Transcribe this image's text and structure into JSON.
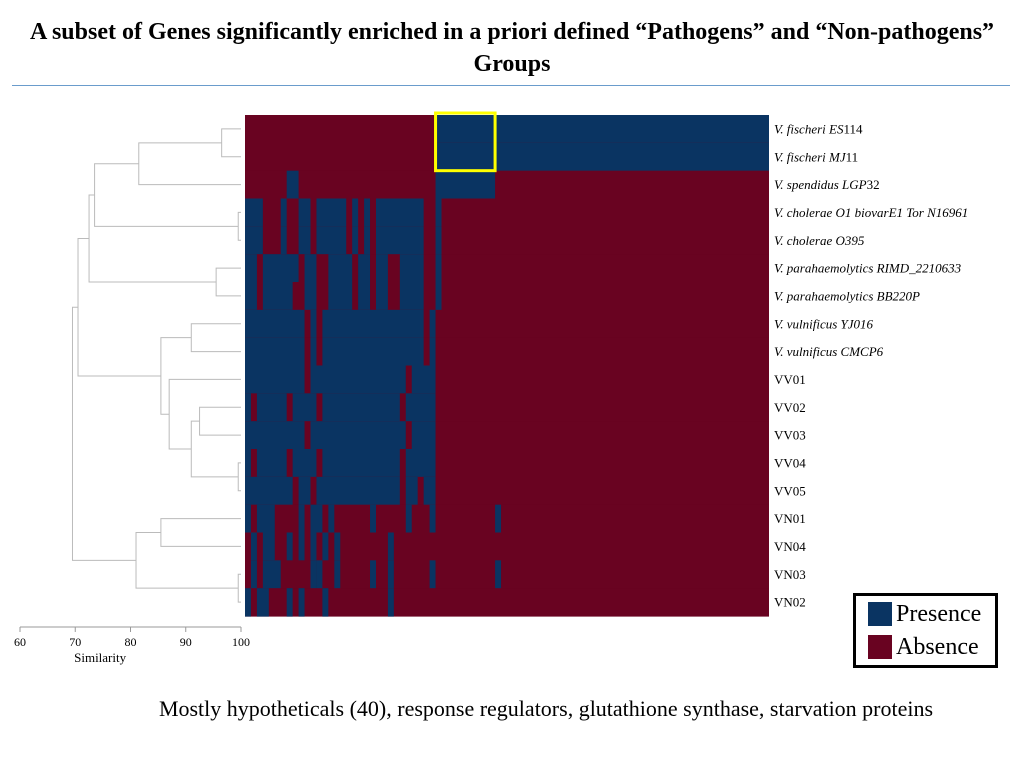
{
  "title": "A subset of Genes significantly enriched in a priori defined “Pathogens” and “Non-pathogens” Groups",
  "caption": "Mostly hypotheticals (40), response regulators, glutathione synthase, starvation proteins",
  "colors": {
    "presence": "#0a3462",
    "absence": "#690321",
    "highlight": "#ffff00",
    "dendrogram": "#bbbbbb",
    "divider": "#6a9ccc"
  },
  "legend": {
    "items": [
      {
        "label": "Presence",
        "key": "presence"
      },
      {
        "label": "Absence",
        "key": "absence"
      }
    ]
  },
  "chart_data": {
    "type": "heatmap",
    "values_legend": {
      "1": "Presence",
      "0": "Absence"
    },
    "rows": [
      {
        "label_italic": "V. fischeri ES",
        "label_plain": "114"
      },
      {
        "label_italic": "V. fischeri MJ",
        "label_plain": "11"
      },
      {
        "label_italic": "V. spendidus LGP",
        "label_plain": "32"
      },
      {
        "label_italic": "V. cholerae O1 biovarE1 Tor N16961",
        "label_plain": ""
      },
      {
        "label_italic": "V. cholerae O395",
        "label_plain": ""
      },
      {
        "label_italic": "V. parahaemolytics RIMD_2210633",
        "label_plain": ""
      },
      {
        "label_italic": "V. parahaemolytics BB220P",
        "label_plain": ""
      },
      {
        "label_italic": "V. vulnificus YJ016",
        "label_plain": ""
      },
      {
        "label_italic": "V. vulnificus CMCP6",
        "label_plain": ""
      },
      {
        "label_italic": "",
        "label_plain": "VV01"
      },
      {
        "label_italic": "",
        "label_plain": "VV02"
      },
      {
        "label_italic": "",
        "label_plain": "VV03"
      },
      {
        "label_italic": "",
        "label_plain": "VV04"
      },
      {
        "label_italic": "",
        "label_plain": "VV05"
      },
      {
        "label_italic": "",
        "label_plain": "VN01"
      },
      {
        "label_italic": "",
        "label_plain": "VN04"
      },
      {
        "label_italic": "",
        "label_plain": "VN03"
      },
      {
        "label_italic": "",
        "label_plain": "VN02"
      }
    ],
    "gene_columns": 88,
    "presence_segments": [
      [
        [
          32,
          42
        ],
        [
          42,
          88
        ]
      ],
      [
        [
          32,
          42
        ],
        [
          42,
          88
        ]
      ],
      [
        [
          7,
          9
        ],
        [
          32,
          42
        ]
      ],
      [
        [
          0,
          3
        ],
        [
          6,
          7
        ],
        [
          9,
          11
        ],
        [
          12,
          17
        ],
        [
          18,
          19
        ],
        [
          20,
          21
        ],
        [
          22,
          30
        ],
        [
          32,
          33
        ]
      ],
      [
        [
          0,
          3
        ],
        [
          6,
          7
        ],
        [
          9,
          11
        ],
        [
          12,
          17
        ],
        [
          18,
          19
        ],
        [
          20,
          21
        ],
        [
          22,
          30
        ],
        [
          32,
          33
        ]
      ],
      [
        [
          0,
          2
        ],
        [
          3,
          9
        ],
        [
          10,
          12
        ],
        [
          14,
          18
        ],
        [
          19,
          21
        ],
        [
          22,
          24
        ],
        [
          26,
          30
        ],
        [
          32,
          33
        ]
      ],
      [
        [
          0,
          2
        ],
        [
          3,
          8
        ],
        [
          10,
          12
        ],
        [
          14,
          18
        ],
        [
          19,
          21
        ],
        [
          22,
          24
        ],
        [
          26,
          30
        ],
        [
          32,
          33
        ]
      ],
      [
        [
          0,
          10
        ],
        [
          11,
          12
        ],
        [
          13,
          30
        ],
        [
          31,
          32
        ]
      ],
      [
        [
          0,
          10
        ],
        [
          11,
          12
        ],
        [
          13,
          30
        ],
        [
          31,
          32
        ]
      ],
      [
        [
          0,
          10
        ],
        [
          11,
          27
        ],
        [
          28,
          32
        ]
      ],
      [
        [
          0,
          1
        ],
        [
          2,
          7
        ],
        [
          8,
          12
        ],
        [
          13,
          26
        ],
        [
          27,
          32
        ]
      ],
      [
        [
          0,
          10
        ],
        [
          11,
          27
        ],
        [
          28,
          32
        ]
      ],
      [
        [
          0,
          1
        ],
        [
          2,
          7
        ],
        [
          8,
          12
        ],
        [
          13,
          26
        ],
        [
          27,
          32
        ]
      ],
      [
        [
          0,
          8
        ],
        [
          9,
          11
        ],
        [
          12,
          26
        ],
        [
          27,
          29
        ],
        [
          30,
          32
        ]
      ],
      [
        [
          0,
          1
        ],
        [
          2,
          5
        ],
        [
          9,
          10
        ],
        [
          11,
          13
        ],
        [
          14,
          15
        ],
        [
          21,
          22
        ],
        [
          27,
          28
        ],
        [
          31,
          32
        ],
        [
          42,
          43
        ]
      ],
      [
        [
          1,
          2
        ],
        [
          3,
          5
        ],
        [
          7,
          8
        ],
        [
          9,
          10
        ],
        [
          11,
          12
        ],
        [
          13,
          14
        ],
        [
          15,
          16
        ],
        [
          24,
          25
        ]
      ],
      [
        [
          1,
          2
        ],
        [
          3,
          6
        ],
        [
          11,
          12
        ],
        [
          12,
          13
        ],
        [
          15,
          16
        ],
        [
          21,
          22
        ],
        [
          24,
          25
        ],
        [
          31,
          32
        ],
        [
          42,
          43
        ]
      ],
      [
        [
          0,
          1
        ],
        [
          2,
          4
        ],
        [
          7,
          8
        ],
        [
          9,
          10
        ],
        [
          13,
          14
        ],
        [
          24,
          25
        ]
      ]
    ],
    "highlight_box": {
      "rows": [
        0,
        2
      ],
      "columns": [
        32,
        42
      ]
    },
    "dendrogram": {
      "axis_title": "Similarity",
      "ticks": [
        60,
        70,
        80,
        90,
        100
      ],
      "range": [
        60,
        100
      ],
      "nodes": [
        {
          "a": 0,
          "b": 1,
          "height": 96.5
        },
        {
          "a": "n0",
          "b": 2,
          "height": 81.5
        },
        {
          "a": 3,
          "b": 4,
          "height": 99.5
        },
        {
          "a": "n1",
          "b": "n2",
          "height": 73.5
        },
        {
          "a": 5,
          "b": 6,
          "height": 95.5
        },
        {
          "a": "n3",
          "b": "n4",
          "height": 72.5
        },
        {
          "a": 7,
          "b": 8,
          "height": 91.0
        },
        {
          "a": 10,
          "b": 11,
          "height": 92.5
        },
        {
          "a": 12,
          "b": 13,
          "height": 99.5
        },
        {
          "a": "n7",
          "b": "n8",
          "height": 91.0
        },
        {
          "a": 9,
          "b": "n9",
          "height": 87.0
        },
        {
          "a": "n6",
          "b": "n10",
          "height": 85.5
        },
        {
          "a": "n5",
          "b": "n11",
          "height": 70.5
        },
        {
          "a": 14,
          "b": 15,
          "height": 85.5
        },
        {
          "a": 16,
          "b": 17,
          "height": 99.5
        },
        {
          "a": "n13",
          "b": "n14",
          "height": 81.0
        },
        {
          "a": "n12",
          "b": "n15",
          "height": 69.5
        }
      ]
    }
  }
}
